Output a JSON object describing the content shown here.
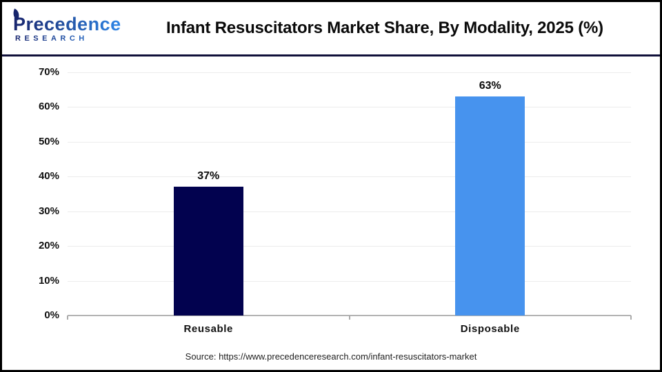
{
  "header": {
    "logo": {
      "line1": "Precedence",
      "line2": "RESEARCH"
    },
    "title": "Infant Resuscitators Market Share, By Modality, 2025 (%)"
  },
  "chart_data": {
    "type": "bar",
    "title": "Infant Resuscitators Market Share, By Modality, 2025 (%)",
    "categories": [
      "Reusable",
      "Disposable"
    ],
    "values": [
      37,
      63
    ],
    "value_labels": [
      "37%",
      "63%"
    ],
    "bar_colors": [
      "#02024f",
      "#4793ee"
    ],
    "xlabel": "",
    "ylabel": "",
    "ylim": [
      0,
      70
    ],
    "ytick_step": 10,
    "ytick_labels": [
      "0%",
      "10%",
      "20%",
      "30%",
      "40%",
      "50%",
      "60%",
      "70%"
    ],
    "grid": true,
    "gridline_color": "#ececec",
    "axis_color": "#b3b3b3",
    "legend_position": "none"
  },
  "footer": {
    "source": "Source: https://www.precedenceresearch.com/infant-resuscitators-market"
  },
  "colors": {
    "header_separator": "#10103a",
    "logo_navy": "#18246d",
    "logo_blue": "#2e86e8",
    "title_text": "#0a0a0a"
  }
}
